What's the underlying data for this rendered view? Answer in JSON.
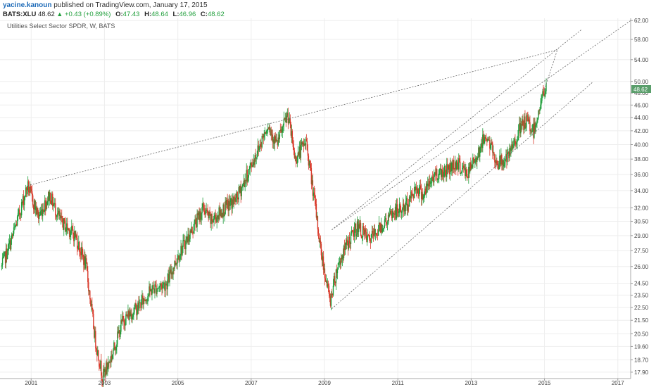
{
  "header": {
    "author": "yacine.kanoun",
    "published": "published on TradingView.com, January 17, 2015"
  },
  "quote": {
    "symbol": "BATS:XLU",
    "last": "48.62",
    "change": "+0.43 (+0.89%)",
    "open_label": "O:",
    "open": "47.43",
    "high_label": "H:",
    "high": "48.64",
    "low_label": "L:",
    "low": "46.96",
    "close_label": "C:",
    "close": "48.62"
  },
  "colors": {
    "up": "#1e9e3a",
    "down": "#d93a2b",
    "trendline": "#666666",
    "price_badge": "#5a9e6b"
  },
  "chart_data": {
    "type": "candlestick",
    "title": "Utilities Select Sector SPDR, W, BATS",
    "price_label": "48.62",
    "y_ticks": [
      17.9,
      18.7,
      19.6,
      20.5,
      21.5,
      22.5,
      23.5,
      24.5,
      26.0,
      27.5,
      29.0,
      30.5,
      32.0,
      34.0,
      36.0,
      38.0,
      40.0,
      42.0,
      44.0,
      46.0,
      48.0,
      50.0,
      54.0,
      58.0,
      62.0
    ],
    "x_ticks": [
      "2001",
      "2003",
      "2005",
      "2007",
      "2009",
      "2011",
      "2013",
      "2015",
      "2017"
    ],
    "x_tick_years": [
      2001,
      2003,
      2005,
      2007,
      2009,
      2011,
      2013,
      2015,
      2017
    ],
    "y_scale": "log",
    "ylim": [
      17.5,
      62.5
    ],
    "xlim": [
      2000.15,
      2017.35
    ],
    "key_points": [
      [
        2000.2,
        26.0
      ],
      [
        2000.5,
        29.0
      ],
      [
        2000.9,
        34.6
      ],
      [
        2001.2,
        31.0
      ],
      [
        2001.5,
        33.5
      ],
      [
        2001.8,
        30.5
      ],
      [
        2002.2,
        29.0
      ],
      [
        2002.5,
        26.0
      ],
      [
        2002.75,
        20.0
      ],
      [
        2002.95,
        17.6
      ],
      [
        2003.2,
        19.0
      ],
      [
        2003.5,
        21.5
      ],
      [
        2003.9,
        22.5
      ],
      [
        2004.3,
        24.0
      ],
      [
        2004.7,
        24.5
      ],
      [
        2005.0,
        27.0
      ],
      [
        2005.3,
        29.0
      ],
      [
        2005.7,
        32.0
      ],
      [
        2005.9,
        30.5
      ],
      [
        2006.3,
        32.0
      ],
      [
        2006.6,
        33.0
      ],
      [
        2006.9,
        36.0
      ],
      [
        2007.2,
        39.5
      ],
      [
        2007.45,
        43.0
      ],
      [
        2007.7,
        40.0
      ],
      [
        2008.0,
        44.5
      ],
      [
        2008.2,
        38.0
      ],
      [
        2008.5,
        40.5
      ],
      [
        2008.75,
        32.0
      ],
      [
        2008.9,
        27.5
      ],
      [
        2009.15,
        23.0
      ],
      [
        2009.35,
        26.0
      ],
      [
        2009.6,
        28.0
      ],
      [
        2009.9,
        30.0
      ],
      [
        2010.2,
        28.5
      ],
      [
        2010.55,
        30.0
      ],
      [
        2010.9,
        31.5
      ],
      [
        2011.2,
        32.0
      ],
      [
        2011.5,
        34.5
      ],
      [
        2011.7,
        33.5
      ],
      [
        2012.0,
        36.0
      ],
      [
        2012.3,
        36.5
      ],
      [
        2012.6,
        37.5
      ],
      [
        2012.9,
        36.0
      ],
      [
        2013.2,
        39.0
      ],
      [
        2013.4,
        41.5
      ],
      [
        2013.7,
        37.5
      ],
      [
        2014.0,
        38.0
      ],
      [
        2014.3,
        42.0
      ],
      [
        2014.5,
        43.5
      ],
      [
        2014.7,
        42.0
      ],
      [
        2014.95,
        47.5
      ],
      [
        2015.05,
        48.62
      ]
    ],
    "trendlines": [
      {
        "from": [
          2000.9,
          34.6
        ],
        "to": [
          2015.35,
          55.9
        ]
      },
      {
        "from": [
          2009.2,
          22.4
        ],
        "to": [
          2016.3,
          49.8
        ]
      },
      {
        "from": [
          2009.2,
          29.6
        ],
        "to": [
          2017.35,
          62.0
        ]
      },
      {
        "from": [
          2009.2,
          29.6
        ],
        "to": [
          2016.0,
          60.0
        ]
      },
      {
        "from": [
          2015.0,
          48.6
        ],
        "to": [
          2015.35,
          55.9
        ]
      }
    ]
  }
}
